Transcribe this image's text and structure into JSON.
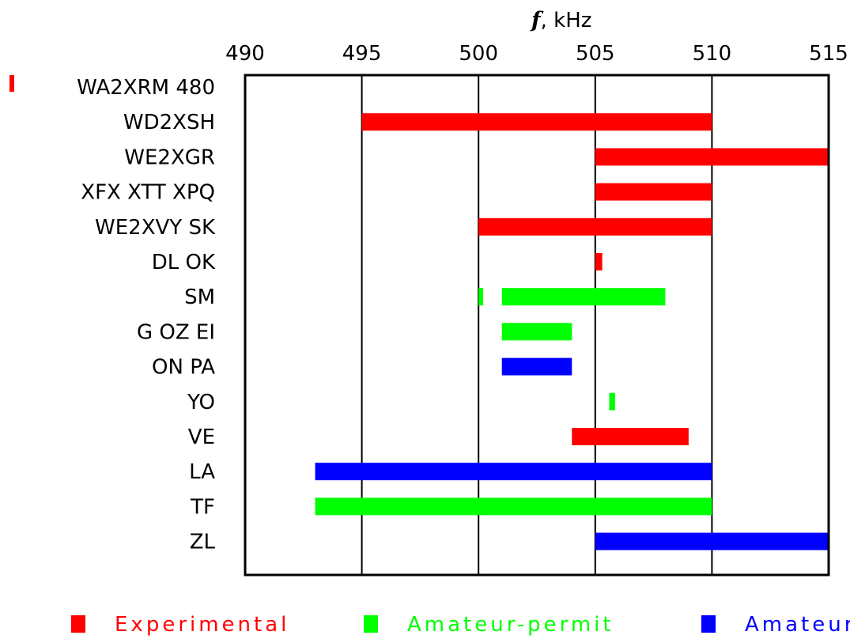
{
  "chart_data": {
    "type": "bar",
    "orientation": "horizontal-range",
    "xlabel_symbol": "f",
    "xlabel_unit": ", kHz",
    "xlim": [
      490,
      515
    ],
    "xticks": [
      "490",
      "495",
      "500",
      "505",
      "510",
      "515"
    ],
    "grid": true,
    "legend_position": "bottom",
    "colors": {
      "Experimental": "#ff0000",
      "Amateur-permit": "#00ff00",
      "Amateur": "#0000ff"
    },
    "legend": [
      {
        "label": "Experimental",
        "color": "#ff0000"
      },
      {
        "label": "Amateur-permit",
        "color": "#00ff00"
      },
      {
        "label": "Amateur",
        "color": "#0000ff"
      }
    ],
    "categories": [
      "WA2XRM 480",
      "WD2XSH",
      "WE2XGR",
      "XFX XTT XPQ",
      "WE2XVY SK",
      "DL OK",
      "SM",
      "G OZ EI",
      "ON PA",
      "YO",
      "VE",
      "LA",
      "TF",
      "ZL"
    ],
    "ranges": [
      {
        "category": "WA2XRM 480",
        "type": "Experimental",
        "start": 480,
        "end": 480.2
      },
      {
        "category": "WD2XSH",
        "type": "Experimental",
        "start": 495,
        "end": 510
      },
      {
        "category": "WE2XGR",
        "type": "Experimental",
        "start": 505,
        "end": 515
      },
      {
        "category": "XFX XTT XPQ",
        "type": "Experimental",
        "start": 505,
        "end": 510
      },
      {
        "category": "WE2XVY SK",
        "type": "Experimental",
        "start": 500,
        "end": 510
      },
      {
        "category": "DL OK",
        "type": "Experimental",
        "start": 505,
        "end": 505.3
      },
      {
        "category": "SM",
        "type": "Amateur-permit",
        "start": 500,
        "end": 500.2
      },
      {
        "category": "SM",
        "type": "Amateur-permit",
        "start": 501,
        "end": 508
      },
      {
        "category": "G OZ EI",
        "type": "Amateur-permit",
        "start": 501,
        "end": 504
      },
      {
        "category": "ON PA",
        "type": "Amateur",
        "start": 501,
        "end": 504
      },
      {
        "category": "YO",
        "type": "Amateur-permit",
        "start": 505.6,
        "end": 505.85
      },
      {
        "category": "VE",
        "type": "Experimental",
        "start": 504,
        "end": 509
      },
      {
        "category": "LA",
        "type": "Amateur",
        "start": 493,
        "end": 510
      },
      {
        "category": "TF",
        "type": "Amateur-permit",
        "start": 493,
        "end": 510
      },
      {
        "category": "ZL",
        "type": "Amateur",
        "start": 505,
        "end": 515
      }
    ]
  }
}
